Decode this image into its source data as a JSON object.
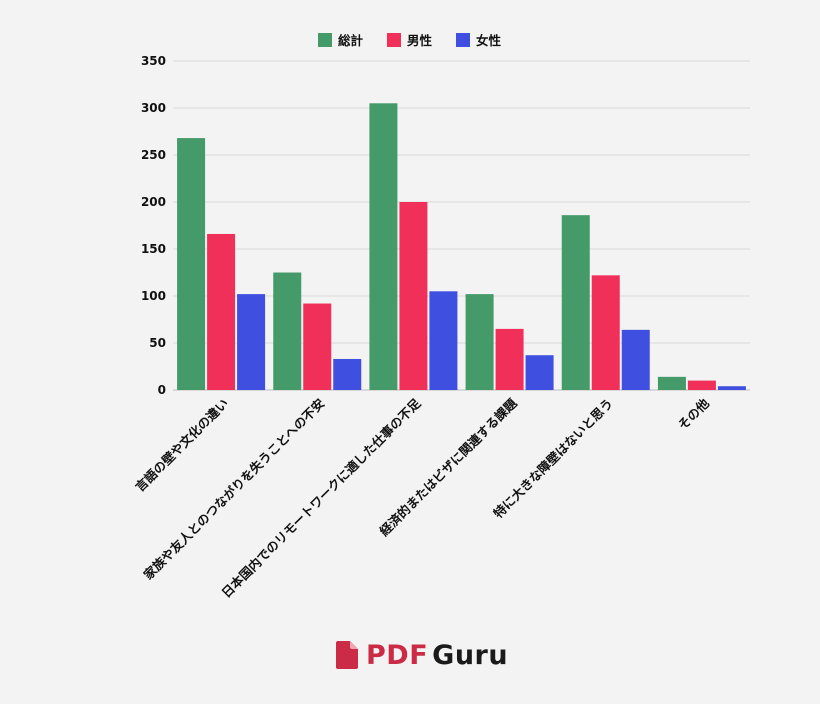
{
  "chart_data": {
    "type": "bar",
    "title": "",
    "xlabel": "",
    "ylabel": "",
    "ylim": [
      0,
      350
    ],
    "yticks": [
      0,
      50,
      100,
      150,
      200,
      250,
      300,
      350
    ],
    "grid": true,
    "legend_position": "top-center",
    "categories": [
      "言語の壁や文化の違い",
      "家族や友人とのつながりを失うことへの不安",
      "日本国内でのリモートワークに適した仕事の不足",
      "経済的またはビザに関連する課題",
      "特に大きな障壁はないと思う",
      "その他"
    ],
    "series": [
      {
        "name": "総計",
        "color": "#449a69",
        "values": [
          268,
          125,
          305,
          102,
          186,
          14
        ]
      },
      {
        "name": "男性",
        "color": "#f1305a",
        "values": [
          166,
          92,
          200,
          65,
          122,
          10
        ]
      },
      {
        "name": "女性",
        "color": "#3f4fe0",
        "values": [
          102,
          33,
          105,
          37,
          64,
          4
        ]
      }
    ]
  },
  "brand": {
    "text_pdf": "PDF",
    "text_guru": "Guru",
    "pdf_color": "#cc2b46",
    "icon": "document-icon"
  }
}
